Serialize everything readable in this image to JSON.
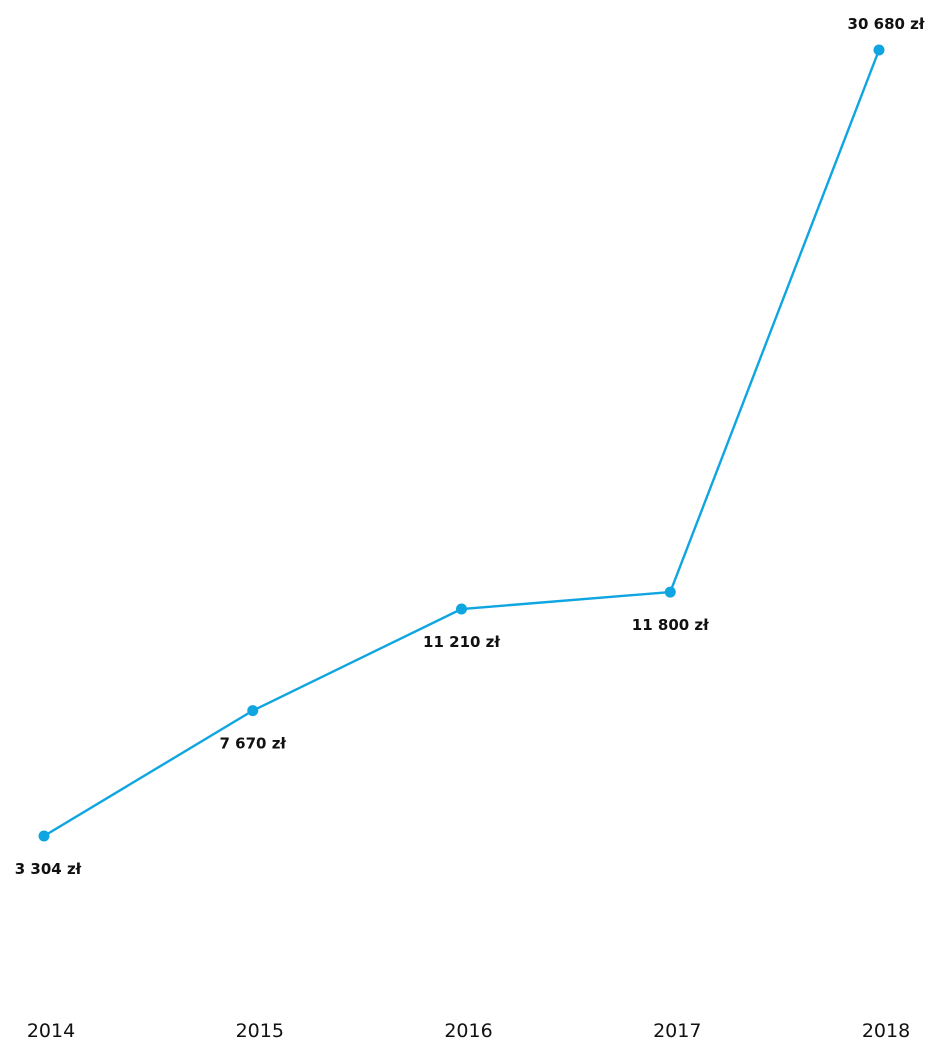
{
  "chart_data": {
    "type": "line",
    "title": "",
    "xlabel": "",
    "ylabel": "",
    "categories": [
      "2014",
      "2015",
      "2016",
      "2017",
      "2018"
    ],
    "series": [
      {
        "values": [
          3304,
          7670,
          11210,
          11800,
          30680
        ],
        "data_labels": [
          "3 304 zł",
          "7 670 zł",
          "11 210 zł",
          "11 800 zł",
          "30 680 zł"
        ],
        "color": "#0ea5e0"
      }
    ],
    "ylim": [
      0,
      32000
    ],
    "grid": false,
    "legend": "none"
  }
}
